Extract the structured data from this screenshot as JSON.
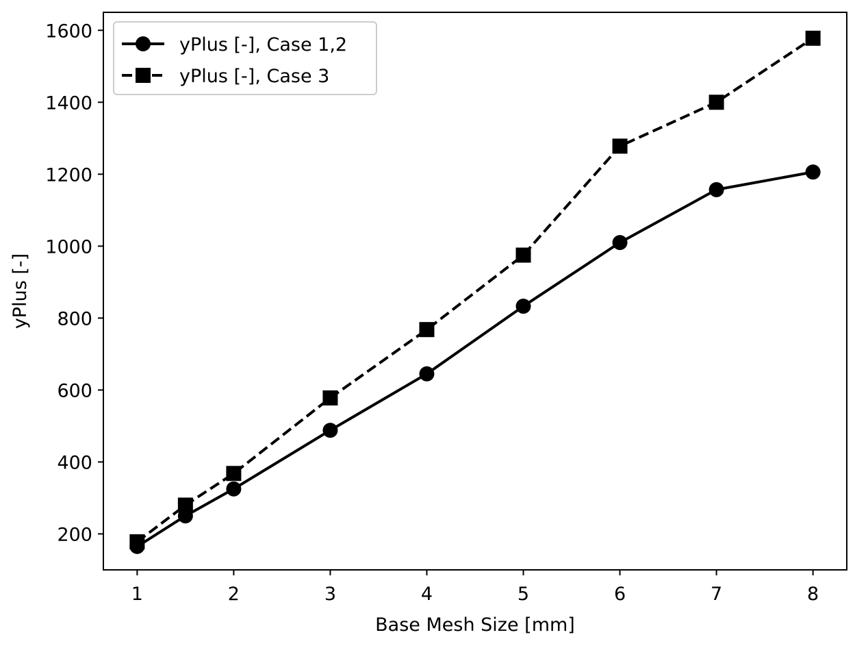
{
  "chart_data": {
    "type": "line",
    "title": "",
    "xlabel": "Base Mesh Size [mm]",
    "ylabel": "yPlus [-]",
    "xlim": [
      0.65,
      8.35
    ],
    "ylim": [
      100,
      1650
    ],
    "xticks": [
      1,
      2,
      3,
      4,
      5,
      6,
      7,
      8
    ],
    "yticks": [
      200,
      400,
      600,
      800,
      1000,
      1200,
      1400,
      1600
    ],
    "grid": false,
    "legend_position": "top-left",
    "series": [
      {
        "name": "yPlus [-], Case 1,2",
        "marker": "circle",
        "linestyle": "solid",
        "color": "#000000",
        "x": [
          1,
          1.5,
          2,
          3,
          4,
          5,
          6,
          7,
          8
        ],
        "y": [
          165,
          250,
          325,
          488,
          645,
          833,
          1010,
          1157,
          1206
        ]
      },
      {
        "name": "yPlus [-], Case 3",
        "marker": "square",
        "linestyle": "dashed",
        "color": "#000000",
        "x": [
          1,
          1.5,
          2,
          3,
          4,
          5,
          6,
          7,
          8
        ],
        "y": [
          178,
          280,
          368,
          578,
          768,
          975,
          1278,
          1400,
          1578
        ]
      }
    ]
  }
}
